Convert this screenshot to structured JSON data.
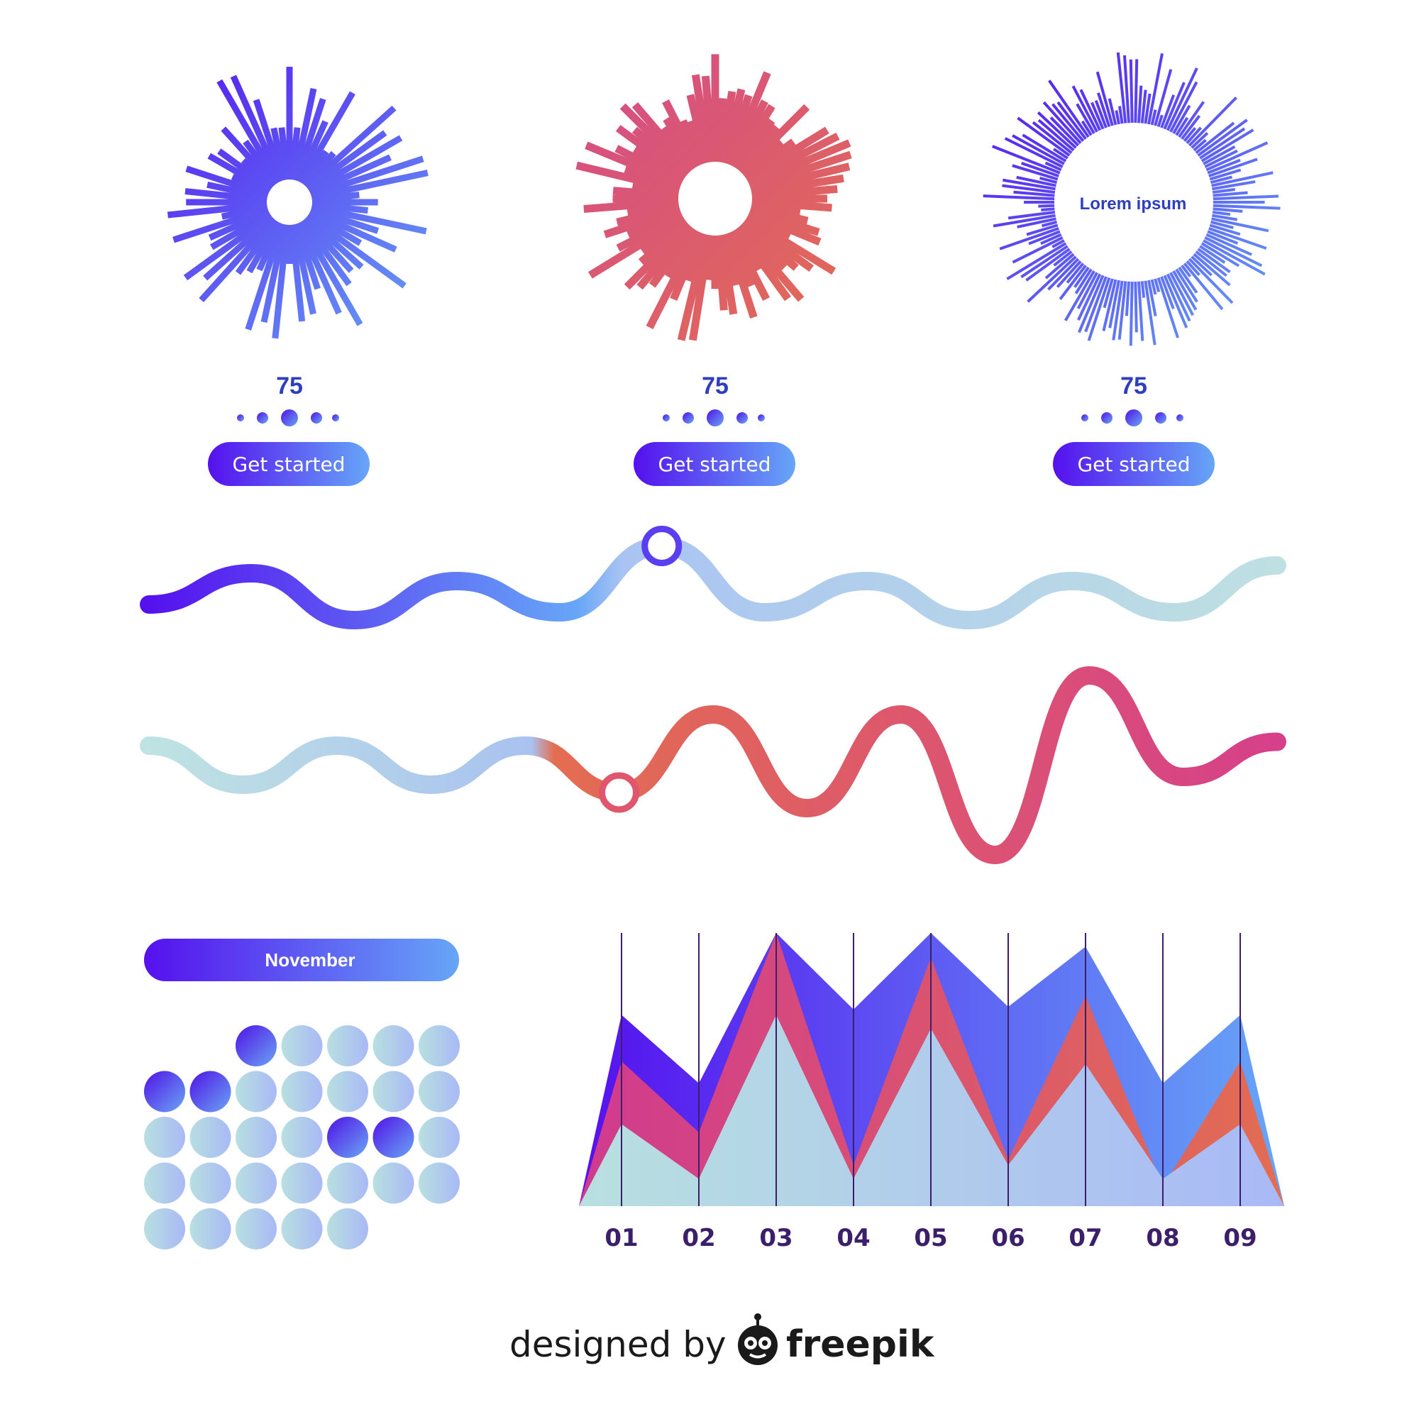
{
  "colors": {
    "blue_start": "#5510ee",
    "blue_end": "#66a6f7",
    "red_start": "#d44a8a",
    "red_end": "#e36d51",
    "pale_start": "#b8e0e0",
    "pale_end": "#a9b9f6",
    "text_blue": "#2e3fbe",
    "tick_text": "#3b1f6b",
    "credit_text": "#1a1a1a"
  },
  "radial_widgets": [
    {
      "value": "75",
      "button_label": "Get started",
      "center_label": ""
    },
    {
      "value": "75",
      "button_label": "Get started",
      "center_label": ""
    },
    {
      "value": "75",
      "button_label": "Get started",
      "center_label": "Lorem ipsum"
    }
  ],
  "calendar": {
    "month": "November",
    "days": 31,
    "start_offset": 2,
    "highlighted": [
      1,
      6,
      7,
      17,
      18
    ]
  },
  "chart_data": [
    {
      "type": "line",
      "series": [
        {
          "values": [
            0.6,
            1.0,
            0.4,
            0.9,
            0.5,
            1.35,
            0.5,
            0.9,
            0.4,
            0.9,
            0.5,
            1.1
          ]
        }
      ],
      "marker_index": 5
    },
    {
      "type": "line",
      "series": [
        {
          "values": [
            0.9,
            0.4,
            0.9,
            0.4,
            0.9,
            0.3,
            1.3,
            0.1,
            1.3,
            -0.5,
            1.8,
            0.5,
            0.95
          ]
        }
      ],
      "marker_index": 5
    },
    {
      "type": "area",
      "categories": [
        "01",
        "02",
        "03",
        "04",
        "05",
        "06",
        "07",
        "08",
        "09"
      ],
      "ylim": [
        0,
        100
      ],
      "series": [
        {
          "values": [
            70,
            45,
            100,
            72,
            100,
            73,
            95,
            45,
            70
          ]
        },
        {
          "values": [
            53,
            27,
            100,
            15,
            91,
            17,
            77,
            7,
            53
          ]
        },
        {
          "values": [
            30,
            10,
            70,
            10,
            65,
            15,
            52,
            10,
            30
          ]
        }
      ]
    }
  ],
  "credit": {
    "prefix": "designed by",
    "brand": "freepik"
  }
}
